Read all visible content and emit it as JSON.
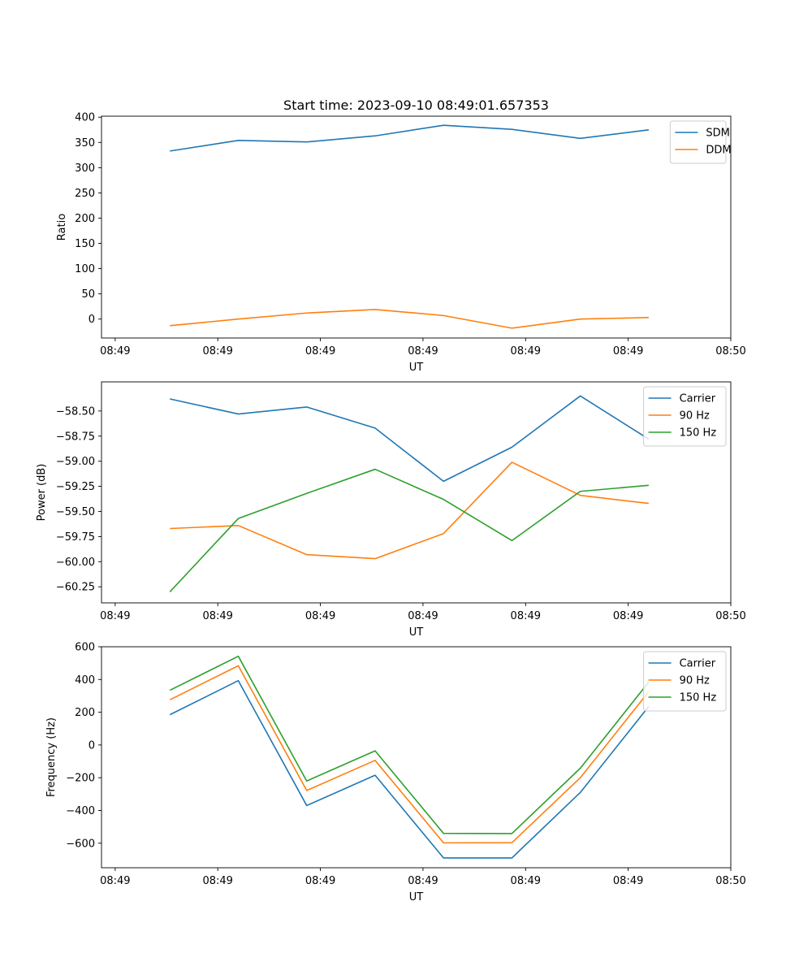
{
  "figure": {
    "title": "Start time: 2023-09-10 08:49:01.657353"
  },
  "colors": {
    "blue": "#1f77b4",
    "orange": "#ff7f0e",
    "green": "#2ca02c"
  },
  "chart_data": [
    {
      "type": "line",
      "title": "Start time: 2023-09-10 08:49:01.657353",
      "xlabel": "UT",
      "ylabel": "Ratio",
      "x": [
        1,
        2,
        3,
        4,
        5,
        6,
        7,
        8
      ],
      "xlim": [
        0,
        9.2
      ],
      "xticks": [
        0.2,
        1.7,
        3.2,
        4.7,
        6.2,
        7.7,
        9.2
      ],
      "xtick_labels": [
        "08:49",
        "08:49",
        "08:49",
        "08:49",
        "08:49",
        "08:49",
        "08:50"
      ],
      "ylim": [
        -37.5,
        402
      ],
      "yticks": [
        0,
        50,
        100,
        150,
        200,
        250,
        300,
        350,
        400
      ],
      "ytick_labels": [
        "0",
        "50",
        "100",
        "150",
        "200",
        "250",
        "300",
        "350",
        "400"
      ],
      "legend": "top-right",
      "series": [
        {
          "name": "SDM",
          "color": "#1f77b4",
          "values": [
            333,
            354,
            351,
            363,
            384,
            376,
            358,
            375
          ]
        },
        {
          "name": "DDM",
          "color": "#ff7f0e",
          "values": [
            -13,
            0,
            12,
            19,
            7,
            -18,
            0,
            3
          ]
        }
      ]
    },
    {
      "type": "line",
      "title": "",
      "xlabel": "UT",
      "ylabel": "Power (dB)",
      "x": [
        1,
        2,
        3,
        4,
        5,
        6,
        7,
        8
      ],
      "xlim": [
        0,
        9.2
      ],
      "xticks": [
        0.2,
        1.7,
        3.2,
        4.7,
        6.2,
        7.7,
        9.2
      ],
      "xtick_labels": [
        "08:49",
        "08:49",
        "08:49",
        "08:49",
        "08:49",
        "08:49",
        "08:50"
      ],
      "ylim": [
        -60.41,
        -58.21
      ],
      "yticks": [
        -60.25,
        -60.0,
        -59.75,
        -59.5,
        -59.25,
        -59.0,
        -58.75,
        -58.5
      ],
      "ytick_labels": [
        "−60.25",
        "−60.00",
        "−59.75",
        "−59.50",
        "−59.25",
        "−59.00",
        "−58.75",
        "−58.50"
      ],
      "legend": "top-right",
      "series": [
        {
          "name": "Carrier",
          "color": "#1f77b4",
          "values": [
            -58.38,
            -58.53,
            -58.46,
            -58.67,
            -59.2,
            -58.86,
            -58.35,
            -58.78
          ]
        },
        {
          "name": "90 Hz",
          "color": "#ff7f0e",
          "values": [
            -59.67,
            -59.64,
            -59.93,
            -59.97,
            -59.72,
            -59.01,
            -59.34,
            -59.42
          ]
        },
        {
          "name": "150 Hz",
          "color": "#2ca02c",
          "values": [
            -60.3,
            -59.57,
            -59.32,
            -59.08,
            -59.38,
            -59.79,
            -59.3,
            -59.24
          ]
        }
      ]
    },
    {
      "type": "line",
      "title": "",
      "xlabel": "UT",
      "ylabel": "Frequency (Hz)",
      "x": [
        1,
        2,
        3,
        4,
        5,
        6,
        7,
        8
      ],
      "xlim": [
        0,
        9.2
      ],
      "xticks": [
        0.2,
        1.7,
        3.2,
        4.7,
        6.2,
        7.7,
        9.2
      ],
      "xtick_labels": [
        "08:49",
        "08:49",
        "08:49",
        "08:49",
        "08:49",
        "08:49",
        "08:50"
      ],
      "ylim": [
        -750,
        600
      ],
      "yticks": [
        -600,
        -400,
        -200,
        0,
        200,
        400,
        600
      ],
      "ytick_labels": [
        "−600",
        "−400",
        "−200",
        "0",
        "200",
        "400",
        "600"
      ],
      "legend": "top-right",
      "series": [
        {
          "name": "Carrier",
          "color": "#1f77b4",
          "values": [
            185,
            393,
            -370,
            -185,
            -690,
            -690,
            -290,
            235
          ]
        },
        {
          "name": "90 Hz",
          "color": "#ff7f0e",
          "values": [
            276,
            484,
            -278,
            -94,
            -598,
            -597,
            -200,
            326
          ]
        },
        {
          "name": "150 Hz",
          "color": "#2ca02c",
          "values": [
            334,
            542,
            -220,
            -36,
            -540,
            -541,
            -142,
            384
          ]
        }
      ]
    }
  ]
}
